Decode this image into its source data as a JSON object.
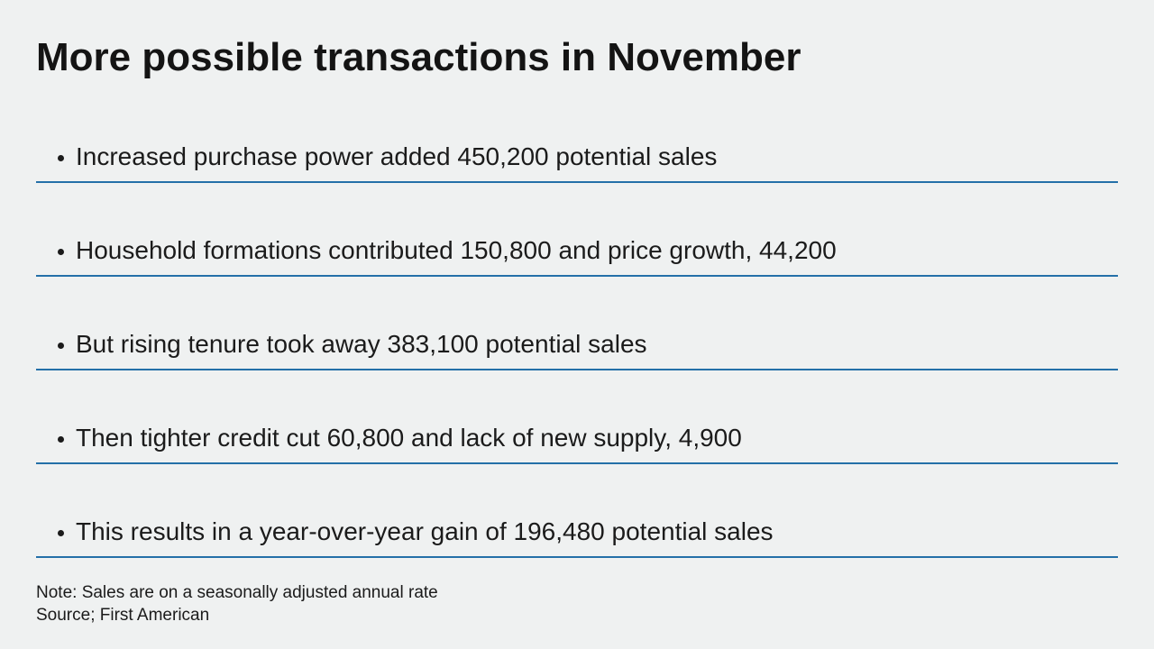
{
  "slide": {
    "title": "More possible transactions in November",
    "bullets": [
      {
        "text": "Increased purchase power added 450,200 potential sales"
      },
      {
        "text": "Household formations contributed 150,800 and price growth, 44,200"
      },
      {
        "text": "But rising tenure took away 383,100 potential sales"
      },
      {
        "text": "Then tighter credit cut 60,800 and lack of new supply, 4,900"
      },
      {
        "text": "This results in a year-over-year gain of 196,480 potential sales"
      }
    ],
    "note": "Note: Sales are on a seasonally adjusted annual rate",
    "source": "Source; First American",
    "colors": {
      "background": "#eff1f1",
      "text": "#1b1b1b",
      "rule_line": "#2470a8"
    }
  }
}
